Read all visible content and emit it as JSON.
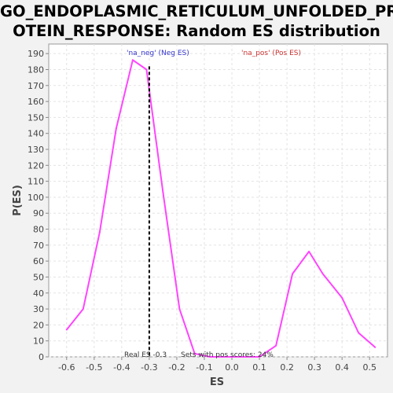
{
  "title_line1": "GO_ENDOPLASMIC_RETICULUM_UNFOLDED_PR",
  "title_line2": "OTEIN_RESPONSE: Random ES distribution",
  "chart_data": {
    "type": "line",
    "xlabel": "ES",
    "ylabel": "P(ES)",
    "xlim": [
      -0.665,
      0.565
    ],
    "ylim": [
      0,
      196
    ],
    "x_ticks": [
      "-0.6",
      "-0.5",
      "-0.4",
      "-0.3",
      "-0.2",
      "-0.1",
      "0.0",
      "0.1",
      "0.2",
      "0.3",
      "0.4",
      "0.5"
    ],
    "y_ticks": [
      "0",
      "10",
      "20",
      "30",
      "40",
      "50",
      "60",
      "70",
      "80",
      "90",
      "100",
      "110",
      "120",
      "130",
      "140",
      "150",
      "160",
      "170",
      "180",
      "190"
    ],
    "grid": true,
    "legend": [
      {
        "label": "'na_neg' (Neg ES)",
        "color": "#3333cc"
      },
      {
        "label": "'na_pos' (Pos ES)",
        "color": "#cc3333"
      }
    ],
    "series": [
      {
        "color": "#ff44ff",
        "points": [
          [
            -0.6,
            17
          ],
          [
            -0.54,
            30
          ],
          [
            -0.48,
            78
          ],
          [
            -0.42,
            143
          ],
          [
            -0.36,
            186
          ],
          [
            -0.31,
            180
          ],
          [
            -0.25,
            103
          ],
          [
            -0.19,
            30
          ],
          [
            -0.135,
            2
          ],
          [
            -0.08,
            0
          ],
          [
            0.0,
            0
          ],
          [
            0.1,
            0
          ],
          [
            0.16,
            7
          ],
          [
            0.22,
            52
          ],
          [
            0.28,
            66
          ],
          [
            0.33,
            52
          ],
          [
            0.4,
            37
          ],
          [
            0.46,
            15
          ],
          [
            0.52,
            6
          ]
        ]
      }
    ],
    "real_es": -0.3,
    "annotations": {
      "real_es": "Real ES -0.3",
      "sets_pos": "Sets with pos scores: 24%"
    }
  }
}
